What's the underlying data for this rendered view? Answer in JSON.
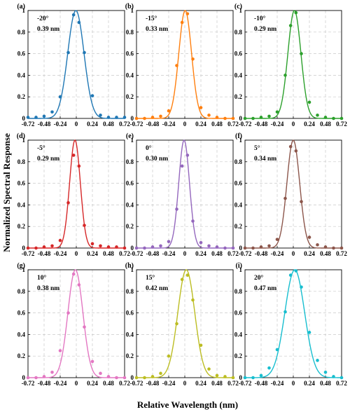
{
  "figure": {
    "xlabel": "Relative Wavelength (nm)",
    "ylabel": "Normalized Spectral Response"
  },
  "chart_data": [
    {
      "type": "line",
      "panel": "(a)",
      "angle": "-20°",
      "fwhm": "0.39 nm",
      "color": "#1f77b4",
      "center": 0.0,
      "points_x": [
        -0.72,
        -0.6,
        -0.48,
        -0.36,
        -0.24,
        -0.12,
        -0.04,
        0.04,
        0.12,
        0.24,
        0.36,
        0.48,
        0.6,
        0.72
      ],
      "points_y": [
        0.01,
        0.01,
        0.02,
        0.06,
        0.2,
        0.61,
        0.96,
        0.89,
        0.61,
        0.21,
        0.03,
        0.01,
        0.01,
        0.01
      ],
      "xlim": [
        -0.72,
        0.72
      ],
      "ylim": [
        0,
        1
      ],
      "xticks": [
        "-0.72",
        "-0.48",
        "-0.24",
        "0",
        "0.24",
        "0.48",
        "0.72"
      ],
      "yticks": [
        "0",
        "0.2",
        "0.4",
        "0.6",
        "0.8",
        "1"
      ],
      "grid": true
    },
    {
      "type": "line",
      "panel": "(b)",
      "angle": "-15°",
      "fwhm": "0.33 nm",
      "color": "#ff7f0e",
      "center": 0.0,
      "points_x": [
        -0.72,
        -0.6,
        -0.48,
        -0.36,
        -0.24,
        -0.12,
        -0.04,
        0.04,
        0.12,
        0.24,
        0.36,
        0.48,
        0.6,
        0.72
      ],
      "points_y": [
        0.0,
        0.0,
        0.01,
        0.02,
        0.07,
        0.49,
        0.89,
        0.97,
        0.55,
        0.1,
        0.03,
        0.01,
        0.0,
        0.0
      ],
      "xlim": [
        -0.72,
        0.72
      ],
      "ylim": [
        0,
        1
      ],
      "xticks": [
        "-0.72",
        "-0.48",
        "-0.24",
        "0",
        "0.24",
        "0.48",
        "0.72"
      ],
      "yticks": [
        "0",
        "0.2",
        "0.4",
        "0.6",
        "0.8",
        "1"
      ],
      "grid": true
    },
    {
      "type": "line",
      "panel": "(c)",
      "angle": "-10°",
      "fwhm": "0.29 nm",
      "color": "#2ca02c",
      "center": 0.0,
      "points_x": [
        -0.72,
        -0.6,
        -0.48,
        -0.36,
        -0.24,
        -0.12,
        -0.04,
        0.04,
        0.12,
        0.24,
        0.36,
        0.48,
        0.6,
        0.72
      ],
      "points_y": [
        0.0,
        0.0,
        0.01,
        0.02,
        0.06,
        0.4,
        0.86,
        0.98,
        0.6,
        0.15,
        0.03,
        0.01,
        0.0,
        0.0
      ],
      "xlim": [
        -0.72,
        0.72
      ],
      "ylim": [
        0,
        1
      ],
      "xticks": [
        "-0.72",
        "-0.48",
        "-0.24",
        "0",
        "0.24",
        "0.48",
        "0.72"
      ],
      "yticks": [
        "0",
        "0.2",
        "0.4",
        "0.6",
        "0.8",
        "1"
      ],
      "grid": true
    },
    {
      "type": "line",
      "panel": "(d)",
      "angle": "-5°",
      "fwhm": "0.29 nm",
      "color": "#d62728",
      "center": 0.0,
      "points_x": [
        -0.72,
        -0.6,
        -0.48,
        -0.36,
        -0.24,
        -0.12,
        -0.04,
        0.04,
        0.12,
        0.24,
        0.36,
        0.48,
        0.6,
        0.72
      ],
      "points_y": [
        0.0,
        0.0,
        0.01,
        0.02,
        0.07,
        0.42,
        0.86,
        0.76,
        0.21,
        0.04,
        0.02,
        0.01,
        0.01,
        0.0
      ],
      "xlim": [
        -0.72,
        0.72
      ],
      "ylim": [
        0,
        1
      ],
      "xticks": [
        "-0.72",
        "-0.48",
        "-0.24",
        "0",
        "0.24",
        "0.48",
        "0.72"
      ],
      "yticks": [
        "0",
        "0.2",
        "0.4",
        "0.6",
        "0.8",
        "1"
      ],
      "grid": true
    },
    {
      "type": "line",
      "panel": "(e)",
      "angle": "0°",
      "fwhm": "0.30 nm",
      "color": "#9467bd",
      "center": 0.0,
      "points_x": [
        -0.72,
        -0.6,
        -0.48,
        -0.36,
        -0.24,
        -0.12,
        -0.04,
        0.04,
        0.12,
        0.24,
        0.36,
        0.48,
        0.6,
        0.72
      ],
      "points_y": [
        0.0,
        0.0,
        0.01,
        0.02,
        0.06,
        0.36,
        0.76,
        0.86,
        0.25,
        0.05,
        0.02,
        0.01,
        0.0,
        0.0
      ],
      "xlim": [
        -0.72,
        0.72
      ],
      "ylim": [
        0,
        1
      ],
      "xticks": [
        "-0.72",
        "-0.48",
        "-0.24",
        "0",
        "0.24",
        "0.48",
        "0.72"
      ],
      "yticks": [
        "0",
        "0.2",
        "0.4",
        "0.6",
        "0.8",
        "1"
      ],
      "grid": true
    },
    {
      "type": "line",
      "panel": "(f)",
      "angle": "5°",
      "fwhm": "0.34 nm",
      "color": "#8c564b",
      "center": 0.0,
      "points_x": [
        -0.72,
        -0.6,
        -0.48,
        -0.36,
        -0.24,
        -0.12,
        -0.04,
        0.04,
        0.12,
        0.24,
        0.36,
        0.48,
        0.6,
        0.72
      ],
      "points_y": [
        0.0,
        0.0,
        0.01,
        0.02,
        0.08,
        0.46,
        0.94,
        0.9,
        0.43,
        0.1,
        0.03,
        0.01,
        0.0,
        0.0
      ],
      "xlim": [
        -0.72,
        0.72
      ],
      "ylim": [
        0,
        1
      ],
      "xticks": [
        "-0.72",
        "-0.48",
        "-0.24",
        "0",
        "0.24",
        "0.48",
        "0.72"
      ],
      "yticks": [
        "0",
        "0.2",
        "0.4",
        "0.6",
        "0.8",
        "1"
      ],
      "grid": true
    },
    {
      "type": "line",
      "panel": "(g)",
      "angle": "10°",
      "fwhm": "0.38 nm",
      "color": "#e377c2",
      "center": 0.0,
      "points_x": [
        -0.72,
        -0.6,
        -0.48,
        -0.36,
        -0.24,
        -0.12,
        -0.04,
        0.04,
        0.12,
        0.24,
        0.36,
        0.48,
        0.6,
        0.72
      ],
      "points_y": [
        0.0,
        0.0,
        0.01,
        0.05,
        0.25,
        0.6,
        0.96,
        0.86,
        0.47,
        0.15,
        0.04,
        0.01,
        0.0,
        0.0
      ],
      "xlim": [
        -0.72,
        0.72
      ],
      "ylim": [
        0,
        1
      ],
      "xticks": [
        "-0.72",
        "-0.48",
        "-0.24",
        "0",
        "0.24",
        "0.48",
        "0.72"
      ],
      "yticks": [
        "0",
        "0.2",
        "0.4",
        "0.6",
        "0.8",
        "1"
      ],
      "grid": true
    },
    {
      "type": "line",
      "panel": "(h)",
      "angle": "15°",
      "fwhm": "0.42 nm",
      "color": "#bcbd22",
      "center": 0.0,
      "points_x": [
        -0.72,
        -0.6,
        -0.48,
        -0.36,
        -0.24,
        -0.12,
        -0.04,
        0.04,
        0.12,
        0.24,
        0.36,
        0.48,
        0.6,
        0.72
      ],
      "points_y": [
        0.0,
        0.0,
        0.01,
        0.04,
        0.2,
        0.5,
        0.91,
        0.95,
        0.72,
        0.3,
        0.08,
        0.02,
        0.01,
        0.0
      ],
      "xlim": [
        -0.72,
        0.72
      ],
      "ylim": [
        0,
        1
      ],
      "xticks": [
        "-0.72",
        "-0.48",
        "-0.24",
        "0",
        "0.24",
        "0.48",
        "0.72"
      ],
      "yticks": [
        "0",
        "0.2",
        "0.4",
        "0.6",
        "0.8",
        "1"
      ],
      "grid": true
    },
    {
      "type": "line",
      "panel": "(i)",
      "angle": "20°",
      "fwhm": "0.47 nm",
      "color": "#17becf",
      "center": 0.0,
      "points_x": [
        -0.72,
        -0.6,
        -0.48,
        -0.36,
        -0.24,
        -0.12,
        -0.04,
        0.04,
        0.12,
        0.24,
        0.36,
        0.48,
        0.6,
        0.72
      ],
      "points_y": [
        0.0,
        0.0,
        0.02,
        0.09,
        0.26,
        0.61,
        0.95,
        0.99,
        0.84,
        0.42,
        0.16,
        0.05,
        0.01,
        0.0
      ],
      "xlim": [
        -0.72,
        0.72
      ],
      "ylim": [
        0,
        1
      ],
      "xticks": [
        "-0.72",
        "-0.48",
        "-0.24",
        "0",
        "0.24",
        "0.48",
        "0.72"
      ],
      "yticks": [
        "0",
        "0.2",
        "0.4",
        "0.6",
        "0.8",
        "1"
      ],
      "grid": true
    }
  ]
}
